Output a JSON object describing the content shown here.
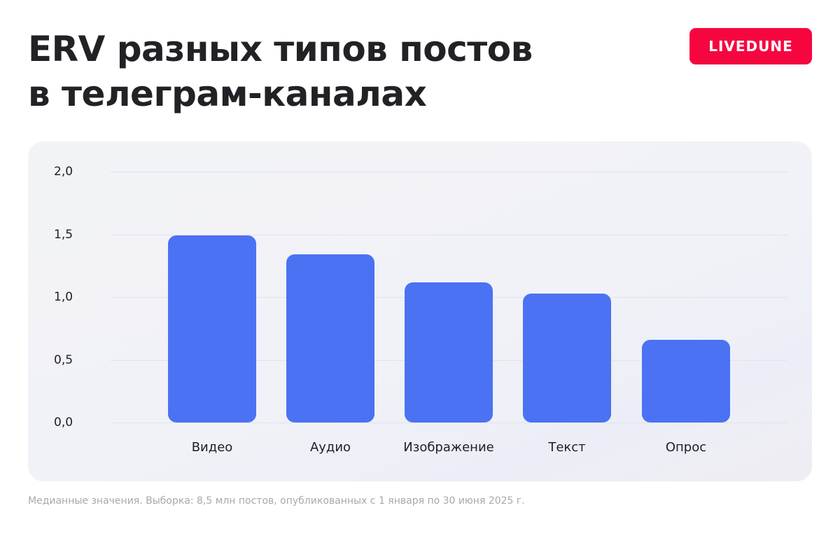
{
  "header": {
    "title_line1": "ERV разных типов постов",
    "title_line2": "в телеграм-каналах",
    "brand_label": "LIVEDUNE"
  },
  "footnote": "Медианные значения. Выборка: 8,5 млн постов, опубликованных с 1 января по 30 июня 2025 г.",
  "colors": {
    "bar": "#4b72f2",
    "brand": "#f5063f",
    "card_bg": "#f2f3f7",
    "gridline": "#e2e3ea",
    "footnote": "#a7a8b0"
  },
  "chart_data": {
    "type": "bar",
    "title": "ERV разных типов постов в телеграм-каналах",
    "xlabel": "",
    "ylabel": "",
    "categories": [
      "Видео",
      "Аудио",
      "Изображение",
      "Текст",
      "Опрос"
    ],
    "values": [
      1.49,
      1.34,
      1.12,
      1.03,
      0.66
    ],
    "ylim": [
      0,
      2.0
    ],
    "yticks": [
      0.0,
      0.5,
      1.0,
      1.5,
      2.0
    ],
    "ytick_labels": [
      "0,0",
      "0,5",
      "1,0",
      "1,5",
      "2,0"
    ],
    "grid": true,
    "legend": "none",
    "note": "Медианные значения. Выборка: 8,5 млн постов, опубликованных с 1 января по 30 июня 2025 г."
  }
}
